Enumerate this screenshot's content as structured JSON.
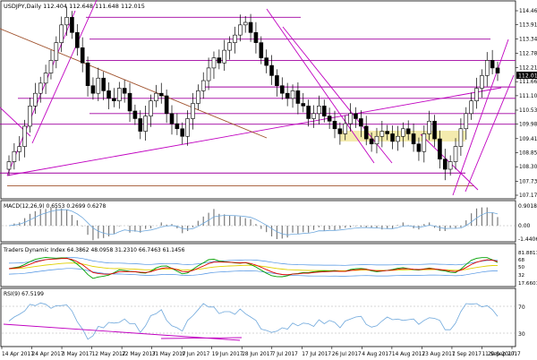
{
  "window": {
    "title": "USDJPY,Daily",
    "ohlc": "112.404 112.648 111.648 112.015"
  },
  "colors": {
    "background": "#ffffff",
    "frame": "#000000",
    "candle": "#000000",
    "trendline": "#c000c0",
    "horizontal": "#a000a0",
    "brown_line": "#a0522d",
    "support_zone": "#f2e8a0",
    "macd_signal": "#6fa8dc",
    "tdi_green": "#00a000",
    "tdi_red": "#e00000",
    "tdi_yellow": "#e0d000",
    "tdi_blue": "#4a90e2",
    "rsi_line": "#6fa8dc",
    "current_price_box": "#000000"
  },
  "chart_data": [
    {
      "type": "line",
      "title": "USDJPY,Daily",
      "y_ticks": [
        "114.460",
        "113.910",
        "113.340",
        "112.785",
        "112.215",
        "111.660",
        "111.105",
        "110.535",
        "109.980",
        "109.410",
        "108.855",
        "108.300",
        "107.730",
        "107.175"
      ],
      "current_price": "112.015",
      "ylim": [
        107.175,
        114.46
      ],
      "x_labels": [
        "14 Apr 2017",
        "24 Apr 2017",
        "3 May 2017",
        "12 May 2017",
        "22 May 2017",
        "31 May 2017",
        "9 Jun 2017",
        "19 Jun 2017",
        "28 Jun 2017",
        "7 Jul 2017",
        "17 Jul 2017",
        "26 Jul 2017",
        "4 Aug 2017",
        "14 Aug 2017",
        "23 Aug 2017",
        "1 Sep 2017",
        "11 Sep 2017",
        "20 Sep 2017"
      ],
      "close": [
        108.5,
        108.9,
        109.1,
        109.9,
        110.7,
        111.2,
        111.6,
        112.0,
        112.5,
        113.2,
        113.9,
        114.2,
        113.6,
        113.0,
        112.4,
        111.5,
        111.2,
        111.8,
        111.3,
        111.0,
        110.9,
        111.4,
        111.2,
        110.5,
        110.2,
        109.7,
        110.3,
        110.9,
        111.2,
        111.1,
        110.4,
        110.0,
        109.8,
        109.5,
        110.2,
        110.8,
        111.3,
        111.7,
        112.2,
        112.6,
        112.4,
        112.9,
        113.2,
        113.5,
        113.9,
        114.0,
        113.6,
        113.2,
        112.6,
        112.3,
        111.9,
        111.5,
        111.2,
        111.0,
        111.3,
        110.8,
        110.7,
        110.2,
        110.4,
        110.7,
        110.3,
        110.1,
        109.8,
        109.6,
        110.0,
        110.4,
        110.2,
        109.9,
        109.4,
        109.2,
        109.5,
        109.7,
        109.6,
        109.3,
        109.5,
        109.8,
        109.6,
        109.2,
        108.9,
        109.6,
        110.1,
        109.4,
        108.6,
        108.2,
        108.5,
        109.1,
        109.8,
        110.4,
        110.9,
        111.4,
        111.9,
        112.5,
        112.2,
        112.0
      ]
    },
    {
      "type": "bar",
      "title": "MACD(12,26,9)",
      "values_label": "0.6553 0.2699 0.6278",
      "y_ticks": [
        "0.9018",
        "0.00",
        "-1.4406"
      ]
    },
    {
      "type": "line",
      "title": "Traders Dynamic Index",
      "values_label": "64.3862 48.0958 31.2310 66.7463 61.1456",
      "y_ticks": [
        "81.8811",
        "68",
        "50",
        "32",
        "17.6601"
      ]
    },
    {
      "type": "line",
      "title": "RSI(9)",
      "values_label": "67.5199",
      "y_ticks": [
        "70",
        "30"
      ]
    }
  ]
}
